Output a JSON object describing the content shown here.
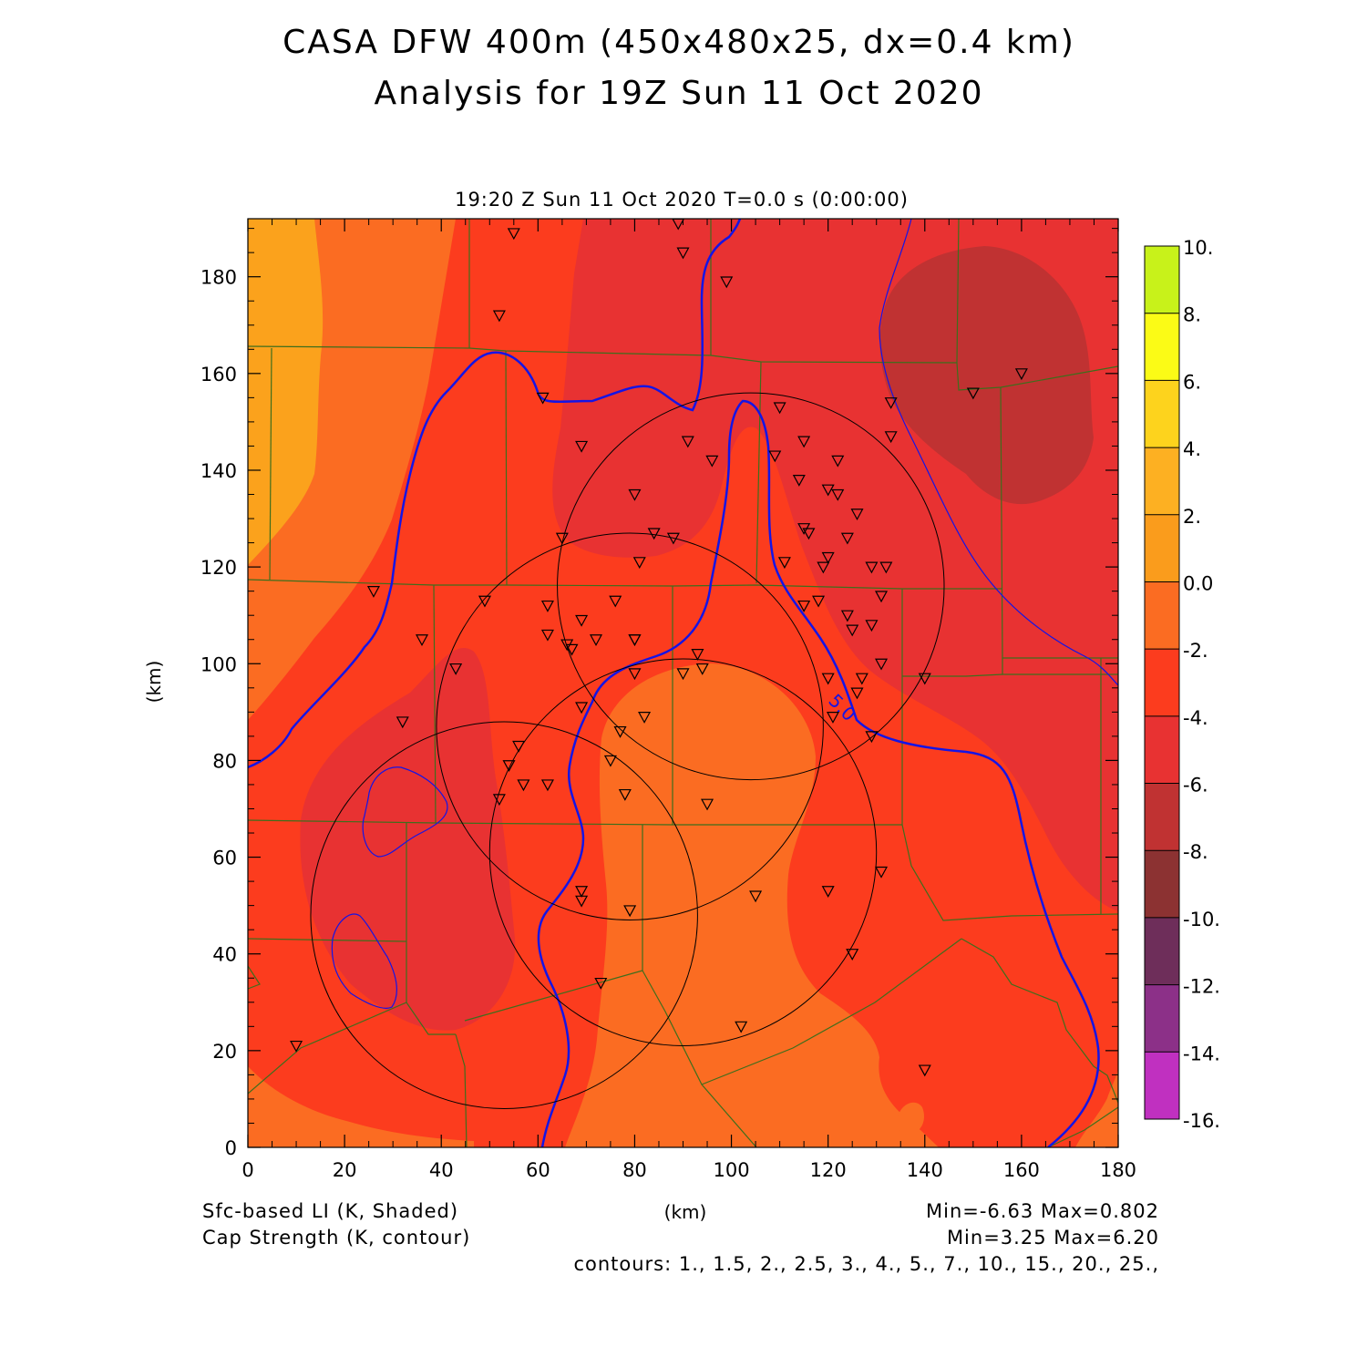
{
  "title": {
    "line1": "CASA DFW 400m (450x480x25, dx=0.4 km)",
    "line2": "Analysis for 19Z Sun 11 Oct 2020"
  },
  "valid_time": "19:20 Z Sun 11 Oct 2020    T=0.0 s (0:00:00)",
  "axes": {
    "xlabel": "(km)",
    "ylabel": "(km)",
    "xlim": [
      0,
      180
    ],
    "ylim": [
      0,
      192
    ],
    "xticks": [
      0,
      20,
      40,
      60,
      80,
      100,
      120,
      140,
      160,
      180
    ],
    "yticks": [
      0,
      20,
      40,
      60,
      80,
      100,
      120,
      140,
      160,
      180
    ]
  },
  "colorbar": {
    "labels": [
      "10.",
      "8.",
      "6.",
      "4.",
      "2.",
      "0.0",
      "-2.",
      "-4.",
      "-6.",
      "-8.",
      "-10.",
      "-12.",
      "-14.",
      "-16."
    ],
    "colors": [
      "#9be21c",
      "#c8f21a",
      "#fbfb16",
      "#fdd31d",
      "#fdb022",
      "#fa9c1c",
      "#fb6c22",
      "#fc3c1e",
      "#e83232",
      "#c03232",
      "#8c3232",
      "#6e2e5a",
      "#8c3088",
      "#c030c0",
      "#d83ce0"
    ]
  },
  "footer": {
    "field1": "Sfc-based LI (K, Shaded)",
    "field2": "Cap Strength (K, contour)",
    "xunit": "(km)",
    "range1": "Min=-6.63 Max=0.802",
    "range2": "Min=3.25 Max=6.20",
    "contours": "contours: 1., 1.5, 2., 2.5, 3., 4., 5., 7., 10., 15., 20., 25.,"
  },
  "contour_label": "5.0",
  "map_data": {
    "shading_colors": {
      "gt0": "#fba21c",
      "m2_0": "#fb6c22",
      "m4_m2": "#fc3c1e",
      "m6_m4": "#e83232",
      "m8_m6": "#c03232"
    },
    "radar_rings_km": [
      {
        "cx": 53,
        "cy": 48,
        "r": 40
      },
      {
        "cx": 90,
        "cy": 61,
        "r": 40
      },
      {
        "cx": 79,
        "cy": 87,
        "r": 40
      },
      {
        "cx": 104,
        "cy": 116,
        "r": 40
      }
    ],
    "stations_km": [
      [
        89,
        191
      ],
      [
        55,
        189
      ],
      [
        90,
        185
      ],
      [
        99,
        179
      ],
      [
        52,
        172
      ],
      [
        61,
        155
      ],
      [
        110,
        153
      ],
      [
        133,
        154
      ],
      [
        150,
        156
      ],
      [
        160,
        160
      ],
      [
        69,
        145
      ],
      [
        91,
        146
      ],
      [
        115,
        146
      ],
      [
        122,
        142
      ],
      [
        96,
        142
      ],
      [
        109,
        143
      ],
      [
        133,
        147
      ],
      [
        114,
        138
      ],
      [
        120,
        136
      ],
      [
        122,
        135
      ],
      [
        80,
        135
      ],
      [
        126,
        131
      ],
      [
        65,
        126
      ],
      [
        84,
        127
      ],
      [
        88,
        126
      ],
      [
        115,
        128
      ],
      [
        116,
        127
      ],
      [
        124,
        126
      ],
      [
        81,
        121
      ],
      [
        111,
        121
      ],
      [
        120,
        122
      ],
      [
        119,
        120
      ],
      [
        129,
        120
      ],
      [
        132,
        120
      ],
      [
        131,
        114
      ],
      [
        26,
        115
      ],
      [
        49,
        113
      ],
      [
        62,
        112
      ],
      [
        69,
        109
      ],
      [
        76,
        113
      ],
      [
        115,
        112
      ],
      [
        118,
        113
      ],
      [
        124,
        110
      ],
      [
        125,
        107
      ],
      [
        129,
        108
      ],
      [
        62,
        106
      ],
      [
        66,
        104
      ],
      [
        67,
        103
      ],
      [
        72,
        105
      ],
      [
        80,
        105
      ],
      [
        80,
        105
      ],
      [
        93,
        102
      ],
      [
        94,
        99
      ],
      [
        36,
        105
      ],
      [
        43,
        99
      ],
      [
        90,
        98
      ],
      [
        80,
        98
      ],
      [
        120,
        97
      ],
      [
        127,
        97
      ],
      [
        126,
        94
      ],
      [
        131,
        100
      ],
      [
        140,
        97
      ],
      [
        69,
        91
      ],
      [
        82,
        89
      ],
      [
        121,
        89
      ],
      [
        32,
        88
      ],
      [
        77,
        86
      ],
      [
        56,
        83
      ],
      [
        75,
        80
      ],
      [
        54,
        79
      ],
      [
        129,
        85
      ],
      [
        57,
        75
      ],
      [
        62,
        75
      ],
      [
        52,
        72
      ],
      [
        78,
        73
      ],
      [
        95,
        71
      ],
      [
        131,
        57
      ],
      [
        120,
        53
      ],
      [
        69,
        53
      ],
      [
        69,
        51
      ],
      [
        79,
        49
      ],
      [
        105,
        52
      ],
      [
        125,
        40
      ],
      [
        73,
        34
      ],
      [
        102,
        25
      ],
      [
        10,
        21
      ],
      [
        140,
        16
      ]
    ]
  }
}
